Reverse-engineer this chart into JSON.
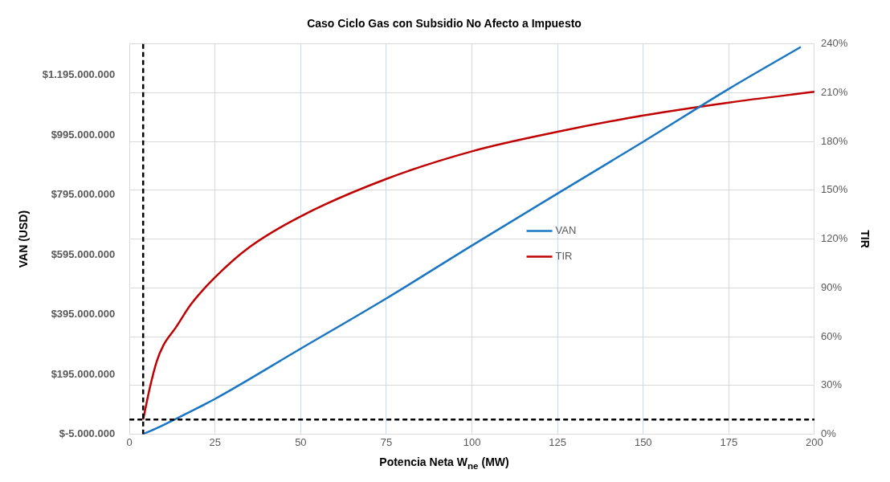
{
  "chart_data": {
    "type": "line",
    "title": "Caso Ciclo Gas con Subsidio No Afecto a Impuesto",
    "xlabel": "Potencia Neta W$_{ne}$ (MW)",
    "ylabel": "VAN (USD)",
    "y2label": "TIR",
    "xlim": [
      0,
      200
    ],
    "xticks": [
      0,
      25,
      50,
      75,
      100,
      125,
      150,
      175,
      200
    ],
    "ylim": [
      -5000000,
      1300000000
    ],
    "yticks": [
      {
        "value": -5000000,
        "label": "$-5.000.000"
      },
      {
        "value": 195000000,
        "label": "$195.000.000"
      },
      {
        "value": 395000000,
        "label": "$395.000.000"
      },
      {
        "value": 595000000,
        "label": "$595.000.000"
      },
      {
        "value": 795000000,
        "label": "$795.000.000"
      },
      {
        "value": 995000000,
        "label": "$995.000.000"
      },
      {
        "value": 1195000000,
        "label": "$1.195.000.000"
      }
    ],
    "y2lim": [
      0,
      240
    ],
    "y2ticks": [
      {
        "value": 0,
        "label": "0%"
      },
      {
        "value": 30,
        "label": "30%"
      },
      {
        "value": 60,
        "label": "60%"
      },
      {
        "value": 90,
        "label": "90%"
      },
      {
        "value": 120,
        "label": "120%"
      },
      {
        "value": 150,
        "label": "150%"
      },
      {
        "value": 180,
        "label": "180%"
      },
      {
        "value": 210,
        "label": "210%"
      },
      {
        "value": 240,
        "label": "240%"
      }
    ],
    "grid": true,
    "legend": "center",
    "marker": "none",
    "line_style": "solid",
    "series": [
      {
        "name": "VAN",
        "color": "#1a76c2",
        "x": [
          4,
          8,
          13,
          25,
          50,
          75,
          100,
          125,
          150,
          175,
          196
        ],
        "values": [
          -5000000,
          15000000,
          43000000,
          113000000,
          281000000,
          449000000,
          626000000,
          800000000,
          973000000,
          1150000000,
          1290000000
        ]
      },
      {
        "name": "TIR",
        "color": "#c00000",
        "axis": "y2",
        "x": [
          4,
          6,
          8,
          10,
          13.5,
          18,
          25,
          35,
          50,
          75,
          100,
          125,
          150,
          175,
          200
        ],
        "values": [
          9,
          29,
          45,
          55,
          65.5,
          80,
          96.5,
          115,
          134,
          157,
          174,
          186,
          196,
          204,
          210.6
        ]
      }
    ],
    "ref_lines": [
      {
        "axis": "x",
        "value": 4,
        "color": "#000000",
        "line_style": "dashed"
      },
      {
        "axis": "y2",
        "value": 9,
        "color": "#000000",
        "line_style": "dashed"
      }
    ]
  }
}
